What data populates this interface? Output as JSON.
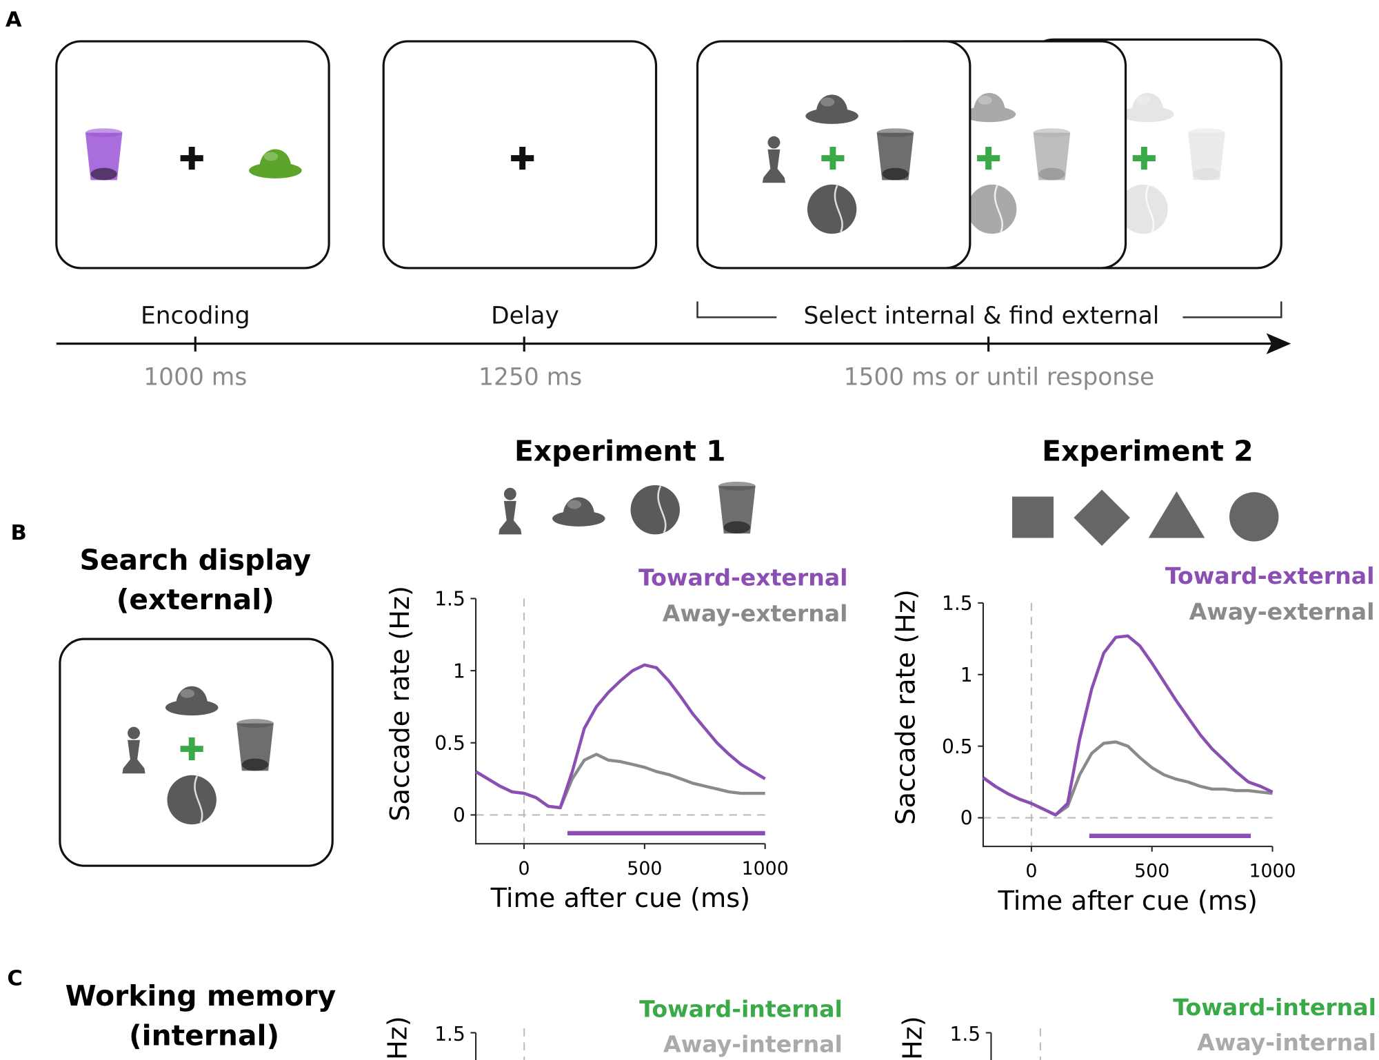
{
  "panel_labels": [
    "A",
    "B",
    "C"
  ],
  "timeline": {
    "phases": [
      {
        "name": "Encoding",
        "duration": "1000 ms"
      },
      {
        "name": "Delay",
        "duration": "1250 ms"
      },
      {
        "name": "Select internal & find external",
        "duration": "1500 ms or until response"
      }
    ]
  },
  "search_display_title": [
    "Search display",
    "(external)"
  ],
  "chart_data": [
    {
      "type": "line",
      "title": "Experiment 1",
      "xlabel": "Time after cue (ms)",
      "ylabel": "Saccade rate (Hz)",
      "x": [
        -200,
        -150,
        -100,
        -50,
        0,
        50,
        100,
        150,
        200,
        250,
        300,
        350,
        400,
        450,
        500,
        550,
        600,
        650,
        700,
        750,
        800,
        850,
        900,
        950,
        1000
      ],
      "series": [
        {
          "name": "Toward-external",
          "color": "#8b4fb3",
          "values": [
            0.3,
            0.25,
            0.2,
            0.16,
            0.15,
            0.12,
            0.06,
            0.05,
            0.3,
            0.6,
            0.75,
            0.85,
            0.93,
            1.0,
            1.04,
            1.02,
            0.93,
            0.82,
            0.7,
            0.6,
            0.5,
            0.42,
            0.35,
            0.3,
            0.25
          ]
        },
        {
          "name": "Away-external",
          "color": "#8a8a8a",
          "values": [
            0.3,
            0.25,
            0.2,
            0.16,
            0.15,
            0.12,
            0.06,
            0.05,
            0.25,
            0.38,
            0.42,
            0.38,
            0.37,
            0.35,
            0.33,
            0.3,
            0.28,
            0.25,
            0.22,
            0.2,
            0.18,
            0.16,
            0.15,
            0.15,
            0.15
          ]
        }
      ],
      "significance": {
        "start": 180,
        "end": 1000,
        "color": "#8b4fb3"
      },
      "xlim": [
        -200,
        1000
      ],
      "xticks": [
        0,
        500,
        1000
      ],
      "ylim": [
        -0.2,
        1.5
      ],
      "yticks": [
        0,
        0.5,
        1,
        1.5
      ]
    },
    {
      "type": "line",
      "title": "Experiment 2",
      "xlabel": "Time after cue (ms)",
      "ylabel": "Saccade rate (Hz)",
      "x": [
        -200,
        -150,
        -100,
        -50,
        0,
        50,
        100,
        150,
        200,
        250,
        300,
        350,
        400,
        450,
        500,
        550,
        600,
        650,
        700,
        750,
        800,
        850,
        900,
        950,
        1000
      ],
      "series": [
        {
          "name": "Toward-external",
          "color": "#8b4fb3",
          "values": [
            0.28,
            0.22,
            0.17,
            0.13,
            0.1,
            0.06,
            0.02,
            0.1,
            0.55,
            0.9,
            1.15,
            1.26,
            1.27,
            1.2,
            1.08,
            0.95,
            0.82,
            0.7,
            0.58,
            0.48,
            0.4,
            0.32,
            0.25,
            0.22,
            0.18
          ]
        },
        {
          "name": "Away-external",
          "color": "#8a8a8a",
          "values": [
            0.28,
            0.22,
            0.17,
            0.13,
            0.1,
            0.06,
            0.02,
            0.08,
            0.3,
            0.45,
            0.52,
            0.53,
            0.5,
            0.42,
            0.35,
            0.3,
            0.27,
            0.25,
            0.22,
            0.2,
            0.2,
            0.19,
            0.19,
            0.18,
            0.17
          ]
        }
      ],
      "significance": {
        "start": 240,
        "end": 910,
        "color": "#8b4fb3"
      },
      "xlim": [
        -200,
        1000
      ],
      "xticks": [
        0,
        500,
        1000
      ],
      "ylim": [
        -0.2,
        1.5
      ],
      "yticks": [
        0,
        0.5,
        1,
        1.5
      ]
    }
  ],
  "panel_c": {
    "title": [
      "Working memory",
      "(internal)"
    ],
    "charts": [
      {
        "legend": [
          {
            "name": "Toward-internal",
            "color": "#3aaa48"
          },
          {
            "name": "Away-internal",
            "color": "#aaaaaa"
          }
        ],
        "ylabel": "Hz)",
        "yticks": [
          1.5
        ]
      },
      {
        "legend": [
          {
            "name": "Toward-internal",
            "color": "#3aaa48"
          },
          {
            "name": "Away-internal",
            "color": "#aaaaaa"
          }
        ],
        "ylabel": "Hz)",
        "yticks": [
          1.5
        ]
      }
    ]
  }
}
